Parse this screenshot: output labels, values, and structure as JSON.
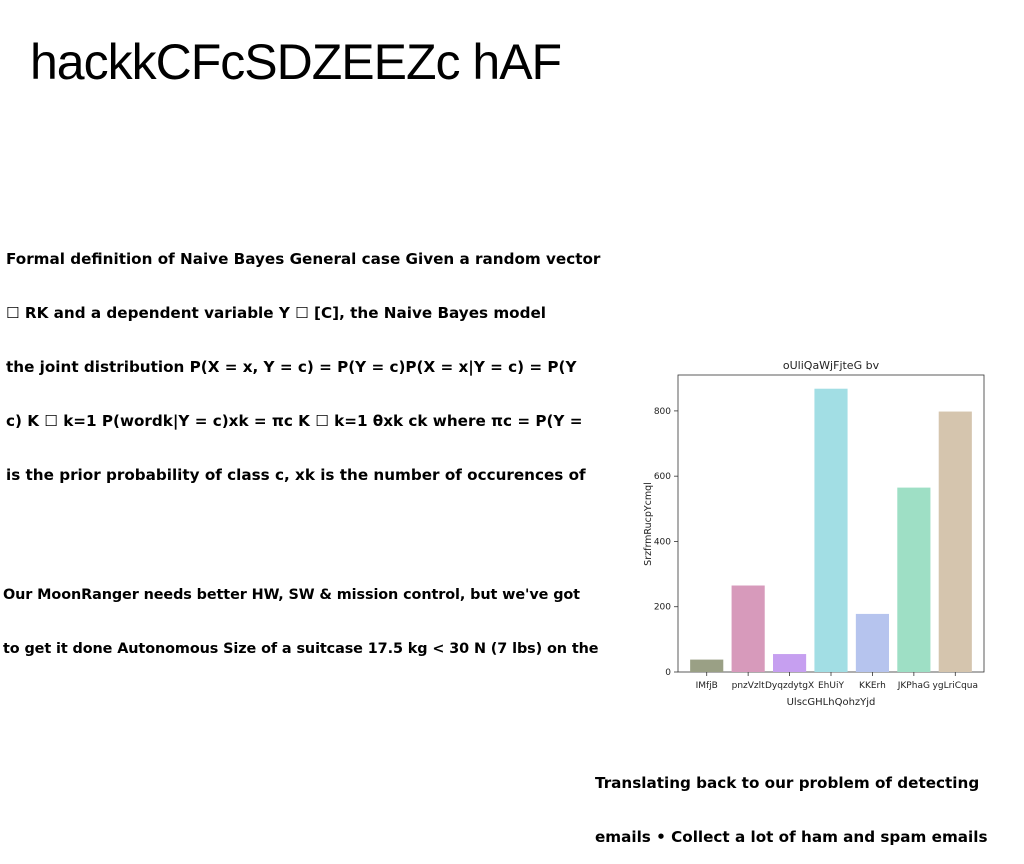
{
  "slide": {
    "title": "hackkCFcSDZEEZc hAF",
    "paragraph_1": [
      "Formal definition of Naive Bayes General case Given a random vector",
      "☐ RK and a dependent variable Y ☐ [C], the Naive Bayes model",
      "the joint distribution P(X = x, Y = c) = P(Y = c)P(X = x|Y = c) = P(Y",
      "c) K ☐ k=1 P(wordk|Y = c)xk = πc K ☐ k=1 θxk ck where πc = P(Y =",
      "is the prior probability of class c, xk is the number of occurences of"
    ],
    "paragraph_2": [
      "Our MoonRanger needs better HW, SW & mission control, but we've got",
      "to get it done Autonomous Size of a suitcase 17.5 kg < 30 N (7 lbs) on the"
    ],
    "paragraph_3": [
      "Translating back to our problem of detecting",
      "emails • Collect a lot of ham and spam emails"
    ]
  },
  "chart_data": {
    "type": "bar",
    "title": "oUliQaWjFjteG bv",
    "xlabel": "UlscGHLhQohzYjd",
    "ylabel": "SrzfrmRucpYcmql",
    "categories": [
      "IMfjB",
      "pnzVzlt",
      "DyqzdytgX",
      "EhUiY",
      "KKErh",
      "JKPhaG",
      "ygLriCqua"
    ],
    "values": [
      38,
      265,
      55,
      868,
      178,
      565,
      798
    ],
    "colors": [
      "#9aa085",
      "#d79abb",
      "#c69ff0",
      "#a2dee4",
      "#b6c4ee",
      "#9edfc5",
      "#d5c5ae"
    ],
    "ylim": [
      0,
      910
    ],
    "yticks": [
      0,
      200,
      400,
      600,
      800
    ],
    "grid": false,
    "legend": "none"
  }
}
